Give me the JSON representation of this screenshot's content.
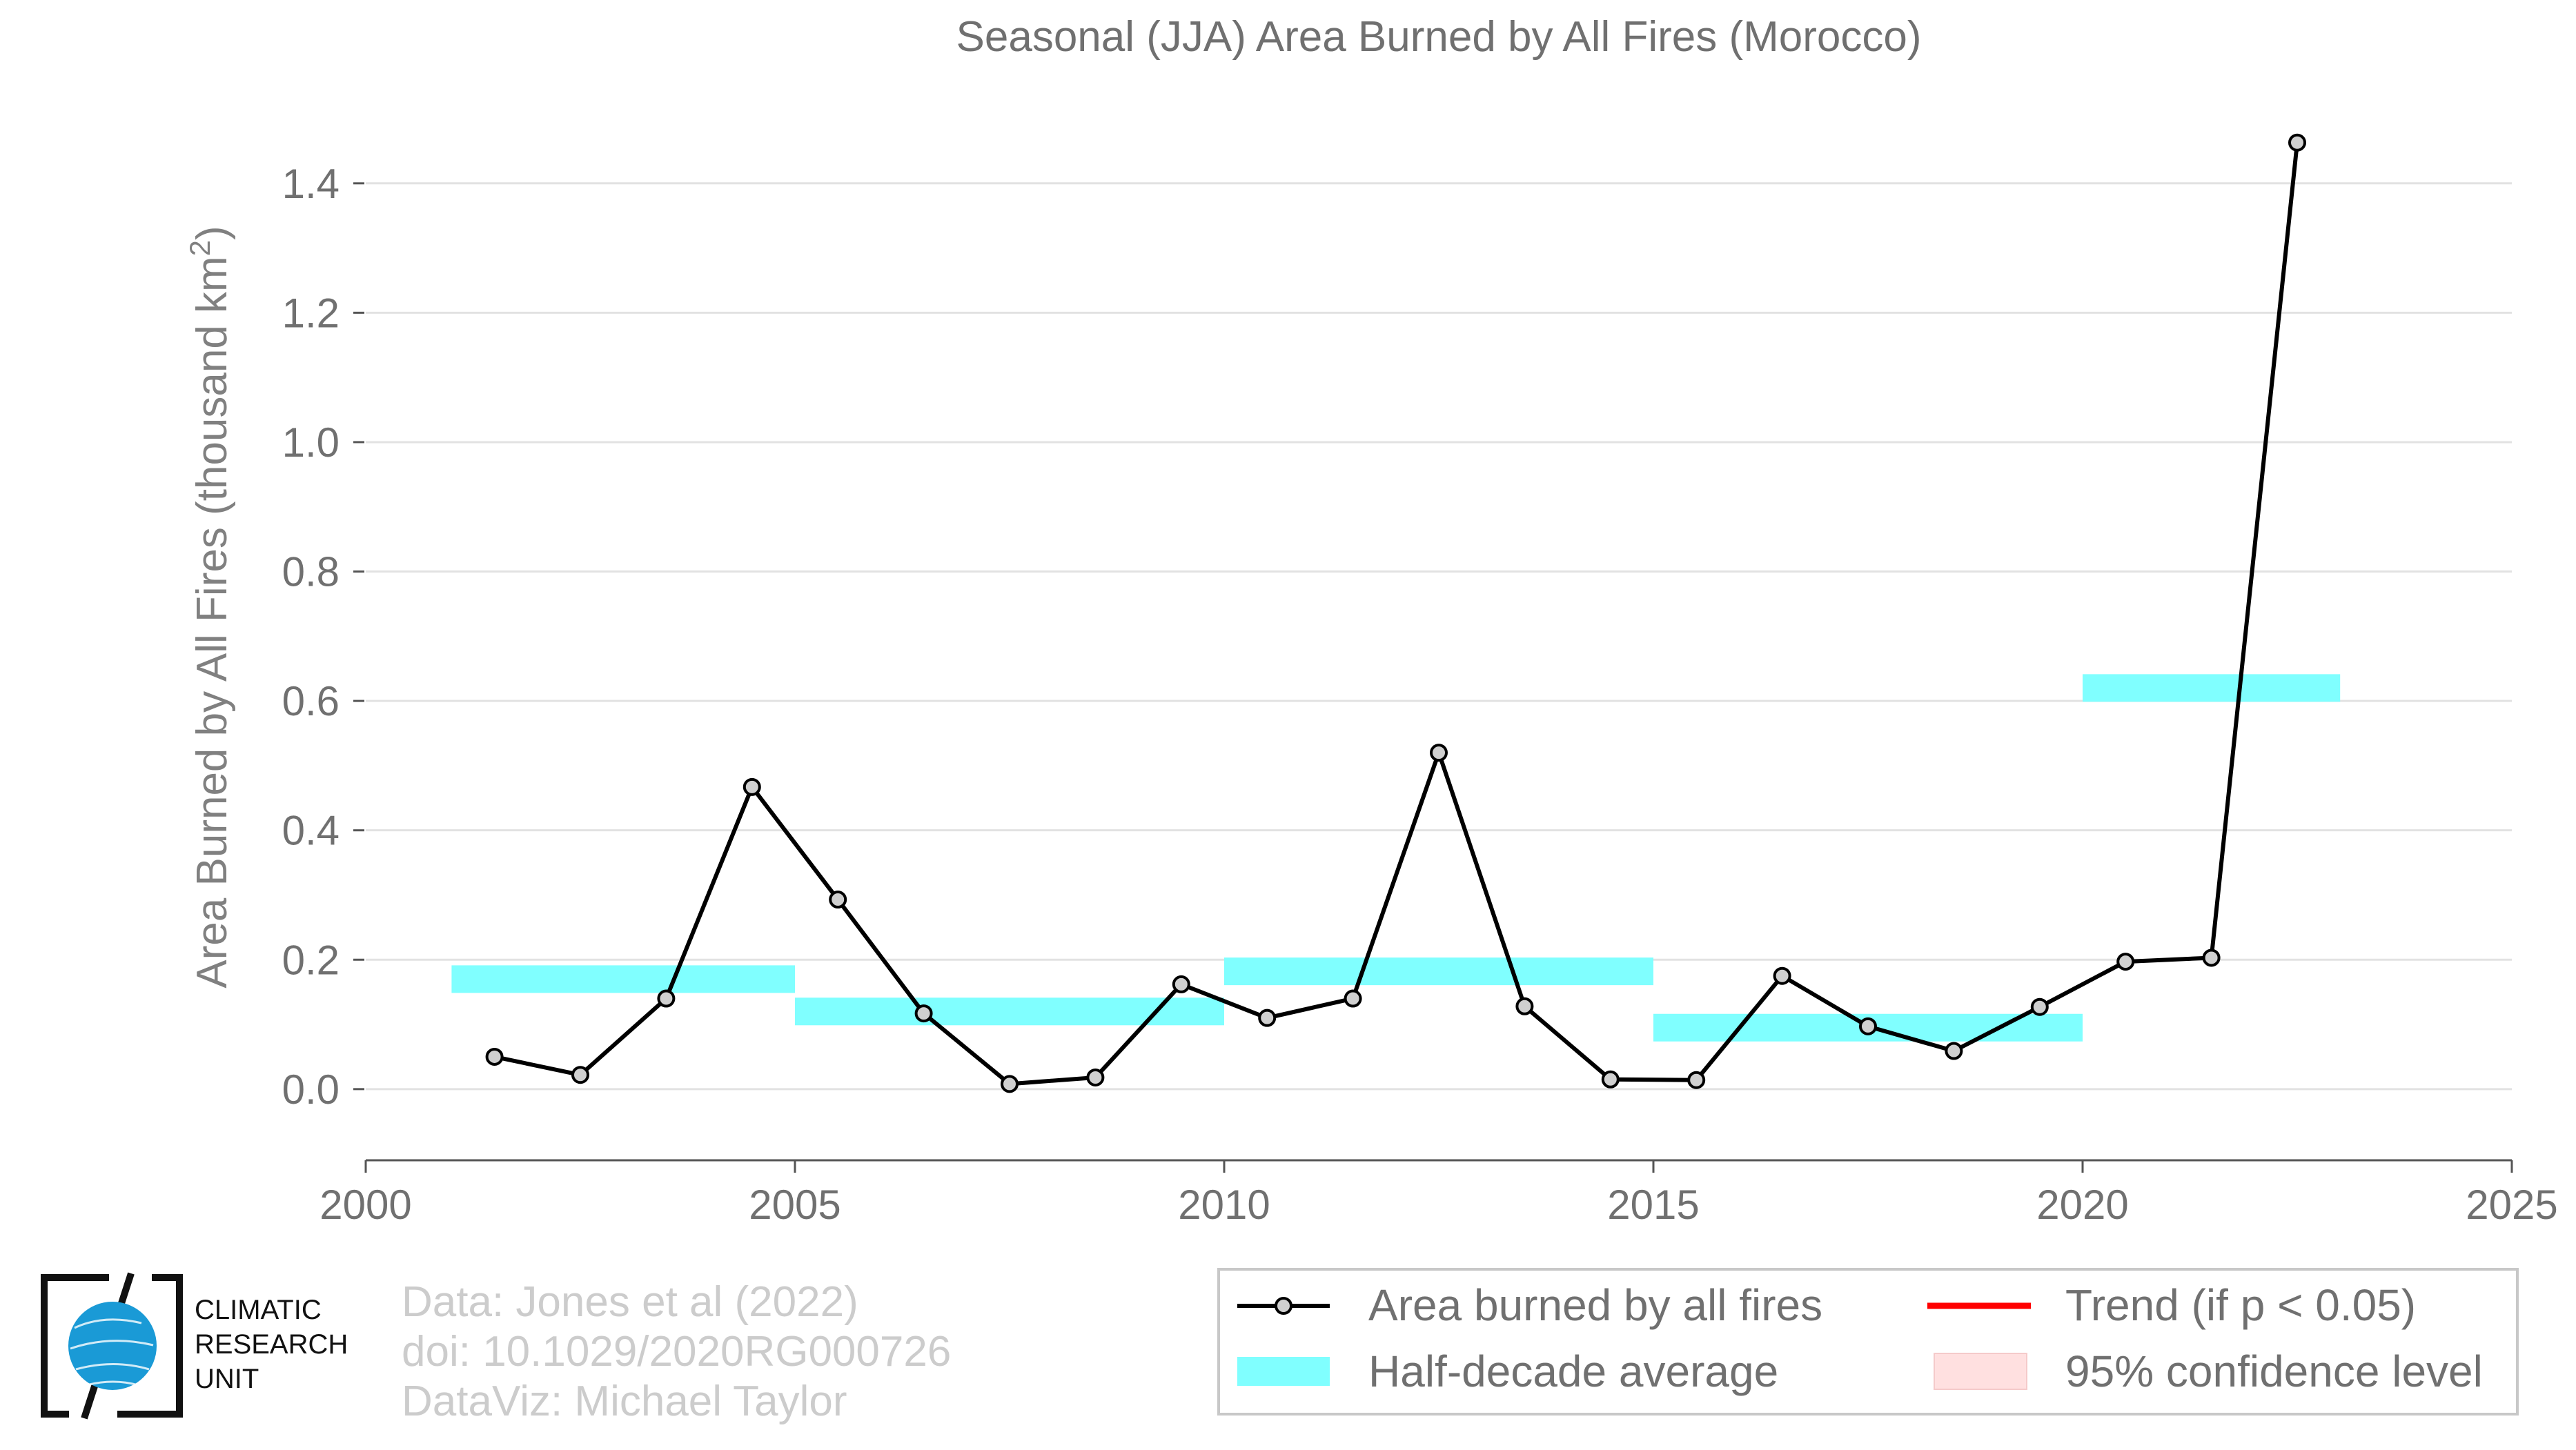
{
  "chart_data": {
    "type": "line",
    "title": "Seasonal (JJA) Area Burned by All Fires (Morocco)",
    "ylabel": "Area Burned by All Fires (thousand km",
    "ylabel_sup": "2",
    "ylabel_close": ")",
    "xlabel": "",
    "xlim": [
      2000,
      2025
    ],
    "ylim": [
      -0.11,
      1.5
    ],
    "xticks": [
      2000,
      2005,
      2010,
      2015,
      2020,
      2025
    ],
    "yticks": [
      "0.0",
      "0.2",
      "0.4",
      "0.6",
      "0.8",
      "1.0",
      "1.2",
      "1.4"
    ],
    "grid": "horizontal",
    "series": [
      {
        "name": "Area burned by all fires",
        "color": "#000000",
        "x": [
          2001.5,
          2002.5,
          2003.5,
          2004.5,
          2005.5,
          2006.5,
          2007.5,
          2008.5,
          2009.5,
          2010.5,
          2011.5,
          2012.5,
          2013.5,
          2014.5,
          2015.5,
          2016.5,
          2017.5,
          2018.5,
          2019.5,
          2020.5,
          2021.5,
          2022.5
        ],
        "values": [
          0.05,
          0.022,
          0.14,
          0.467,
          0.293,
          0.117,
          0.008,
          0.018,
          0.162,
          0.11,
          0.14,
          0.52,
          0.128,
          0.015,
          0.014,
          0.175,
          0.097,
          0.059,
          0.127,
          0.197,
          0.203,
          1.463
        ]
      }
    ],
    "half_decade_average": {
      "name": "Half-decade average",
      "color": "#80ffff",
      "bands": [
        {
          "start": 2001,
          "end": 2005,
          "value": 0.17
        },
        {
          "start": 2005,
          "end": 2010,
          "value": 0.12
        },
        {
          "start": 2010,
          "end": 2015,
          "value": 0.182
        },
        {
          "start": 2015,
          "end": 2020,
          "value": 0.095
        },
        {
          "start": 2020,
          "end": 2023,
          "value": 0.62
        }
      ]
    },
    "legend": [
      {
        "label": "Area burned by all fires",
        "kind": "line-marker",
        "color": "#000000"
      },
      {
        "label": "Trend (if p < 0.05)",
        "kind": "line",
        "color": "#ff0000"
      },
      {
        "label": "Half-decade average",
        "kind": "patch",
        "color": "#80ffff"
      },
      {
        "label": "95% confidence level",
        "kind": "patch",
        "color": "#ffe0e0"
      }
    ],
    "legend_position": "bottom-right"
  },
  "credits": {
    "line1": "Data: Jones et al (2022)",
    "line2": "doi: 10.1029/2020RG000726",
    "line3": "DataViz: Michael Taylor"
  },
  "logo": {
    "line1": "CLIMATIC",
    "line2": "RESEARCH",
    "line3": "UNIT",
    "globe_color": "#1a9ad6"
  }
}
